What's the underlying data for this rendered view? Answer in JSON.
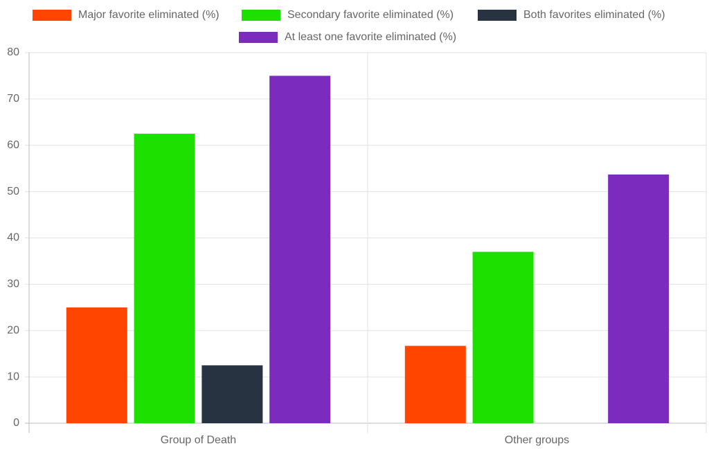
{
  "chart_data": {
    "type": "bar",
    "categories": [
      "Group of Death",
      "Other groups"
    ],
    "series": [
      {
        "name": "Major favorite eliminated (%)",
        "color": "#ff4500",
        "values": [
          25,
          16.7
        ]
      },
      {
        "name": "Secondary favorite eliminated (%)",
        "color": "#1ee000",
        "values": [
          62.5,
          37
        ]
      },
      {
        "name": "Both favorites eliminated (%)",
        "color": "#283341",
        "values": [
          12.5,
          0
        ]
      },
      {
        "name": "At least one favorite eliminated (%)",
        "color": "#7b2cbf",
        "values": [
          75,
          53.7
        ]
      }
    ],
    "ylim": [
      0,
      80
    ],
    "yticks": [
      0,
      10,
      20,
      30,
      40,
      50,
      60,
      70,
      80
    ],
    "grid": true,
    "legend": "top"
  }
}
